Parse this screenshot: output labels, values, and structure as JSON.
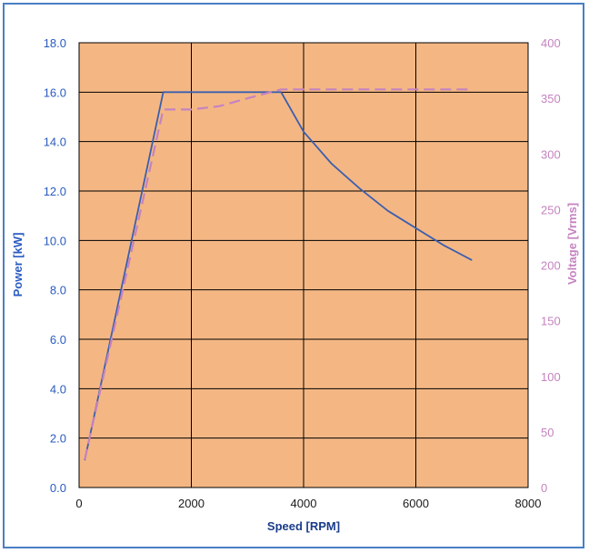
{
  "chart_data": {
    "type": "line",
    "title": "",
    "xlabel": "Speed [RPM]",
    "ylabel": "Power [kW]",
    "y2label": "Voltage [Vrms]",
    "xlim": [
      0,
      8000
    ],
    "ylim": [
      0,
      18
    ],
    "y2lim": [
      0,
      400
    ],
    "x_ticks": [
      "0",
      "2000",
      "4000",
      "6000",
      "8000"
    ],
    "y_ticks": [
      "0.0",
      "2.0",
      "4.0",
      "6.0",
      "8.0",
      "10.0",
      "12.0",
      "14.0",
      "16.0",
      "18.0"
    ],
    "y2_ticks": [
      "0",
      "50",
      "100",
      "150",
      "200",
      "250",
      "300",
      "350",
      "400"
    ],
    "grid": true,
    "colors": {
      "plot_bg": "#f4b784",
      "power": "#3c5fae",
      "voltage": "#c583bf",
      "frame": "#4a7fc4"
    },
    "series": [
      {
        "axis": "left",
        "style": "solid",
        "x": [
          100,
          1500,
          3600,
          4000,
          4500,
          5000,
          5500,
          6000,
          6500,
          7000
        ],
        "values": [
          1.1,
          16.0,
          16.0,
          14.4,
          13.1,
          12.1,
          11.2,
          10.5,
          9.8,
          9.2
        ]
      },
      {
        "axis": "right",
        "style": "dashed",
        "x": [
          100,
          1500,
          2000,
          2500,
          3000,
          3600,
          4000,
          5000,
          6000,
          7000
        ],
        "values": [
          25,
          340,
          340,
          343,
          350,
          358,
          358,
          358,
          358,
          358
        ]
      }
    ]
  }
}
